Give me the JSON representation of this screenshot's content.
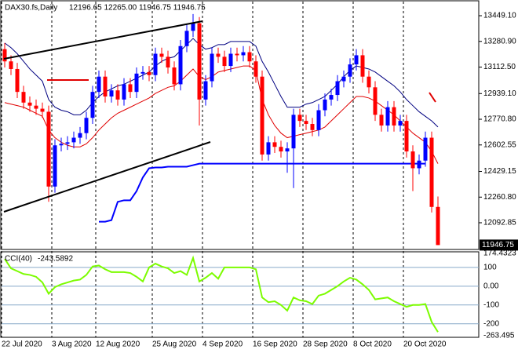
{
  "chart_data": [
    {
      "type": "candlestick",
      "title": "DAX30.fs,Daily",
      "ohlc_label": "12196.65 12265.00 11946.75 11946.75",
      "categories": [
        "22 Jul 2020",
        null,
        null,
        null,
        null,
        null,
        null,
        null,
        "3 Aug 2020",
        null,
        null,
        null,
        null,
        null,
        null,
        "12 Aug 2020",
        null,
        null,
        null,
        null,
        null,
        null,
        null,
        null,
        "25 Aug 2020",
        null,
        null,
        null,
        null,
        null,
        null,
        null,
        "4 Sep 2020",
        null,
        null,
        null,
        null,
        null,
        null,
        null,
        "16 Sep 2020",
        null,
        null,
        null,
        null,
        null,
        null,
        null,
        "28 Sep 2020",
        null,
        null,
        null,
        null,
        null,
        null,
        null,
        "8 Oct 2020",
        null,
        null,
        null,
        null,
        null,
        null,
        null,
        "20 Oct 2020",
        null,
        null,
        null,
        null,
        null
      ],
      "open": [
        13230,
        13150,
        13100,
        12950,
        12880,
        12860,
        12840,
        12820,
        12330,
        12600,
        12610,
        12620,
        12650,
        12680,
        12780,
        12950,
        13050,
        12920,
        12960,
        12900,
        13000,
        12950,
        13070,
        13080,
        13060,
        13200,
        13180,
        13110,
        13000,
        13250,
        13350,
        13400,
        12900,
        13020,
        13200,
        13180,
        13120,
        13200,
        13190,
        13210,
        13150,
        13050,
        12540,
        12620,
        12590,
        12560,
        12580,
        12800,
        12760,
        12740,
        12700,
        12830,
        12900,
        12930,
        13020,
        13050,
        13130,
        13190,
        13050,
        12980,
        12800,
        12730,
        12850,
        12730,
        12760,
        12560,
        12450,
        12500,
        12650,
        12196.65
      ],
      "high": [
        13270,
        13190,
        13140,
        12990,
        12920,
        12900,
        12880,
        12860,
        12640,
        12650,
        12660,
        12690,
        12720,
        12820,
        12990,
        13090,
        13090,
        13000,
        13000,
        13040,
        13040,
        13110,
        13120,
        13120,
        13240,
        13240,
        13220,
        13150,
        13290,
        13390,
        13460,
        13440,
        13060,
        13240,
        13240,
        13220,
        13240,
        13240,
        13250,
        13250,
        13190,
        13090,
        12660,
        12660,
        12630,
        12620,
        12840,
        12840,
        12800,
        12780,
        12870,
        12940,
        12970,
        13060,
        13090,
        13170,
        13230,
        13230,
        13090,
        13020,
        12840,
        12890,
        12890,
        12800,
        12800,
        12600,
        12540,
        12690,
        12690,
        12265
      ],
      "low": [
        13110,
        13060,
        12910,
        12840,
        12820,
        12800,
        12780,
        12230,
        12290,
        12560,
        12570,
        12580,
        12610,
        12640,
        12740,
        12910,
        12880,
        12880,
        12860,
        12860,
        12910,
        12910,
        13030,
        13020,
        13020,
        13140,
        13070,
        12960,
        12960,
        13210,
        13310,
        12730,
        12860,
        12980,
        13140,
        13080,
        13080,
        13150,
        13150,
        13110,
        13010,
        12500,
        12500,
        12550,
        12520,
        12420,
        12320,
        12720,
        12700,
        12660,
        12660,
        12790,
        12860,
        12890,
        12980,
        13010,
        13090,
        13010,
        12940,
        12760,
        12690,
        12690,
        12690,
        12690,
        12520,
        12300,
        12410,
        12460,
        12160,
        11946.75
      ],
      "close": [
        13150,
        13100,
        12950,
        12880,
        12860,
        12840,
        12820,
        12330,
        12600,
        12610,
        12620,
        12650,
        12680,
        12780,
        12950,
        13050,
        12920,
        12960,
        12900,
        13000,
        12950,
        13070,
        13080,
        13060,
        13200,
        13180,
        13110,
        13000,
        13250,
        13350,
        13400,
        12900,
        13020,
        13200,
        13180,
        13120,
        13200,
        13190,
        13210,
        13150,
        13050,
        12540,
        12620,
        12590,
        12560,
        12580,
        12800,
        12760,
        12740,
        12700,
        12830,
        12900,
        12930,
        13020,
        13050,
        13130,
        13190,
        13050,
        12980,
        12800,
        12730,
        12850,
        12730,
        12760,
        12560,
        12450,
        12500,
        12650,
        12196.65,
        11946.75
      ],
      "up_color": "#0000ff",
      "down_color": "#ff0000",
      "overlays": [
        {
          "color": "#000080",
          "width": 1,
          "values": [
            13270,
            13240,
            13200,
            13150,
            13100,
            13060,
            13020,
            12900,
            12850,
            12830,
            12820,
            12800,
            12800,
            12830,
            12880,
            12920,
            12950,
            12970,
            12990,
            13000,
            13020,
            13040,
            13060,
            13080,
            13120,
            13150,
            13170,
            13180,
            13220,
            13260,
            13300,
            13260,
            13230,
            13240,
            13260,
            13260,
            13280,
            13280,
            13280,
            13280,
            13250,
            13150,
            13080,
            13000,
            12920,
            12850,
            12850,
            12850,
            12870,
            12880,
            12900,
            12920,
            12960,
            13000,
            13050,
            13090,
            13120,
            13110,
            13100,
            13080,
            13050,
            13020,
            12990,
            12950,
            12900,
            12860,
            12820,
            12790,
            12760,
            12720
          ]
        },
        {
          "color": "#e00000",
          "width": 1,
          "values": [
            12880,
            12870,
            12860,
            12850,
            12830,
            12810,
            12790,
            12700,
            12650,
            12620,
            12600,
            12590,
            12590,
            12610,
            12650,
            12700,
            12740,
            12780,
            12810,
            12830,
            12850,
            12870,
            12890,
            12910,
            12940,
            12960,
            12980,
            12990,
            13020,
            13060,
            13100,
            13050,
            13030,
            13050,
            13080,
            13090,
            13100,
            13110,
            13120,
            13120,
            13090,
            12900,
            12800,
            12730,
            12680,
            12650,
            12660,
            12670,
            12680,
            12690,
            12700,
            12720,
            12760,
            12800,
            12840,
            12880,
            12920,
            12920,
            12910,
            12890,
            12860,
            12830,
            12800,
            12760,
            12720,
            12680,
            12650,
            12620,
            12560,
            12480
          ]
        },
        {
          "color": "#0000ff",
          "width": 2,
          "values": [
            null,
            null,
            null,
            null,
            null,
            null,
            null,
            null,
            null,
            null,
            null,
            null,
            null,
            null,
            null,
            12100,
            12100,
            12110,
            12230,
            12240,
            12240,
            12300,
            12390,
            12450,
            12455,
            12455,
            12460,
            12460,
            12460,
            12460,
            12470,
            12480,
            12480,
            12480,
            12480,
            12480,
            12480,
            12480,
            12480,
            12480,
            12480,
            12480,
            12480,
            12480,
            12480,
            12480,
            12480,
            12480,
            12480,
            12480,
            12480,
            12480,
            12480,
            12480,
            12480,
            12480,
            12480,
            12480,
            12480,
            12480,
            12480,
            12480,
            12480,
            12480,
            12480,
            12480,
            12480,
            12480,
            null,
            null
          ]
        }
      ],
      "ylim": [
        11918,
        13552
      ],
      "yticks": [
        {
          "value": 13449.1,
          "label": "13449.10"
        },
        {
          "value": 13280.9,
          "label": "13280.90"
        },
        {
          "value": 13112.5,
          "label": "13112.50"
        },
        {
          "value": 12939.1,
          "label": "12939.10"
        },
        {
          "value": 12770.8,
          "label": "12770.80"
        },
        12602.55,
        12429.15,
        {
          "value": 12260.8,
          "label": "12260.80"
        },
        12092.85
      ]
    },
    {
      "type": "line",
      "title": "CCI(40)",
      "color": "#7cfc00",
      "values": [
        145,
        95,
        80,
        65,
        60,
        50,
        20,
        -40,
        -5,
        10,
        20,
        30,
        35,
        60,
        105,
        110,
        90,
        75,
        75,
        75,
        70,
        50,
        25,
        100,
        120,
        105,
        95,
        70,
        80,
        60,
        150,
        25,
        45,
        70,
        40,
        100,
        100,
        100,
        100,
        100,
        90,
        -60,
        -85,
        -80,
        -100,
        -130,
        -60,
        -75,
        -80,
        -95,
        -50,
        -40,
        -20,
        0,
        25,
        45,
        35,
        10,
        -20,
        -70,
        -65,
        -60,
        -80,
        -95,
        -110,
        -100,
        -100,
        -95,
        -190,
        -243.5892
      ],
      "ylim": [
        -263.495,
        174.4323
      ],
      "yticks": [
        100,
        {
          "value": 0,
          "label": "0.00"
        },
        -100,
        -200
      ],
      "level_color": "#87a9c9"
    }
  ]
}
